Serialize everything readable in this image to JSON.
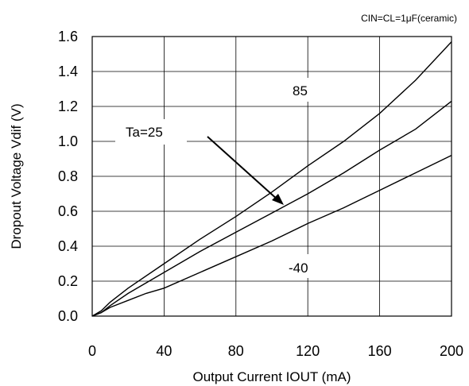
{
  "chart_data": {
    "type": "line",
    "condition_note": "CIN=CL=1μF(ceramic)",
    "xlabel": "Output Current  IOUT  (mA)",
    "ylabel": "Dropout Voltage  Vdif  (V)",
    "xlim": [
      0,
      200
    ],
    "ylim": [
      0,
      1.6
    ],
    "x_ticks": [
      "0",
      "40",
      "80",
      "120",
      "160",
      "200"
    ],
    "y_ticks": [
      "0.0",
      "0.2",
      "0.4",
      "0.6",
      "0.8",
      "1.0",
      "1.2",
      "1.4",
      "1.6"
    ],
    "grid": true,
    "series": [
      {
        "name": "85",
        "points": [
          [
            0,
            0
          ],
          [
            5,
            0.03
          ],
          [
            10,
            0.08
          ],
          [
            20,
            0.16
          ],
          [
            40,
            0.3
          ],
          [
            60,
            0.44
          ],
          [
            80,
            0.57
          ],
          [
            100,
            0.71
          ],
          [
            120,
            0.86
          ],
          [
            140,
            1.0
          ],
          [
            160,
            1.16
          ],
          [
            180,
            1.35
          ],
          [
            200,
            1.57
          ]
        ]
      },
      {
        "name": "Ta=25",
        "points": [
          [
            0,
            0
          ],
          [
            5,
            0.02
          ],
          [
            10,
            0.06
          ],
          [
            20,
            0.13
          ],
          [
            40,
            0.25
          ],
          [
            60,
            0.37
          ],
          [
            80,
            0.48
          ],
          [
            100,
            0.59
          ],
          [
            120,
            0.7
          ],
          [
            140,
            0.82
          ],
          [
            160,
            0.95
          ],
          [
            180,
            1.07
          ],
          [
            200,
            1.23
          ]
        ]
      },
      {
        "name": "-40",
        "points": [
          [
            0,
            0
          ],
          [
            5,
            0.02
          ],
          [
            10,
            0.05
          ],
          [
            20,
            0.09
          ],
          [
            30,
            0.13
          ],
          [
            40,
            0.16
          ],
          [
            60,
            0.25
          ],
          [
            80,
            0.34
          ],
          [
            100,
            0.43
          ],
          [
            120,
            0.53
          ],
          [
            140,
            0.62
          ],
          [
            160,
            0.72
          ],
          [
            180,
            0.82
          ],
          [
            200,
            0.92
          ]
        ]
      }
    ],
    "annotations": {
      "label_85": "85",
      "label_25": "Ta=25",
      "label_m40": "-40"
    }
  }
}
